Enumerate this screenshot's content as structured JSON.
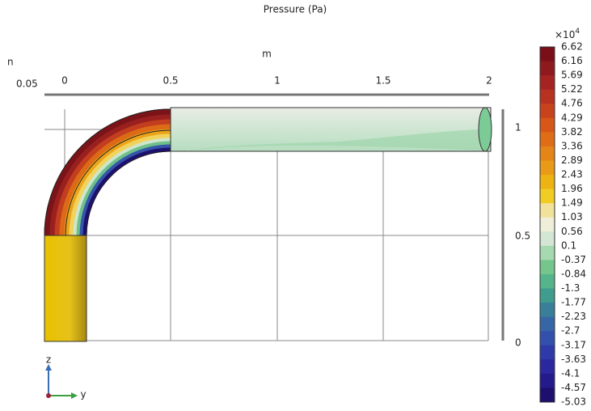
{
  "title": "Pressure (Pa)",
  "axes": {
    "x_unit": "m",
    "x_ticks": [
      "0",
      "0.5",
      "1",
      "1.5",
      "2"
    ],
    "z_ticks": [
      "1",
      "0.5",
      "0"
    ],
    "corner_label": "0.05",
    "cut_label": "n"
  },
  "colorbar": {
    "multiplier": "×10",
    "exponent": "4",
    "labels": [
      "6.62",
      "6.16",
      "5.69",
      "5.22",
      "4.76",
      "4.29",
      "3.82",
      "3.36",
      "2.89",
      "2.43",
      "1.96",
      "1.49",
      "1.03",
      "0.56",
      "0.1",
      "-0.37",
      "-0.84",
      "-1.3",
      "-1.77",
      "-2.23",
      "-2.7",
      "-3.17",
      "-3.63",
      "-4.1",
      "-4.57",
      "-5.03"
    ],
    "colors": [
      "#7a0f1a",
      "#8e1a1e",
      "#a52422",
      "#b83222",
      "#c8431c",
      "#d65718",
      "#df6c16",
      "#e58417",
      "#e99b18",
      "#edb313",
      "#f1cc23",
      "#f2e19a",
      "#eeeed9",
      "#d3e6d3",
      "#a6d9b0",
      "#74c68c",
      "#55b48a",
      "#3f9c8e",
      "#3a7f99",
      "#3766a6",
      "#3450ad",
      "#2f3aaa",
      "#2b279e",
      "#251a8c",
      "#1c0f6e"
    ]
  },
  "triad": {
    "z": "z",
    "y": "y"
  }
}
